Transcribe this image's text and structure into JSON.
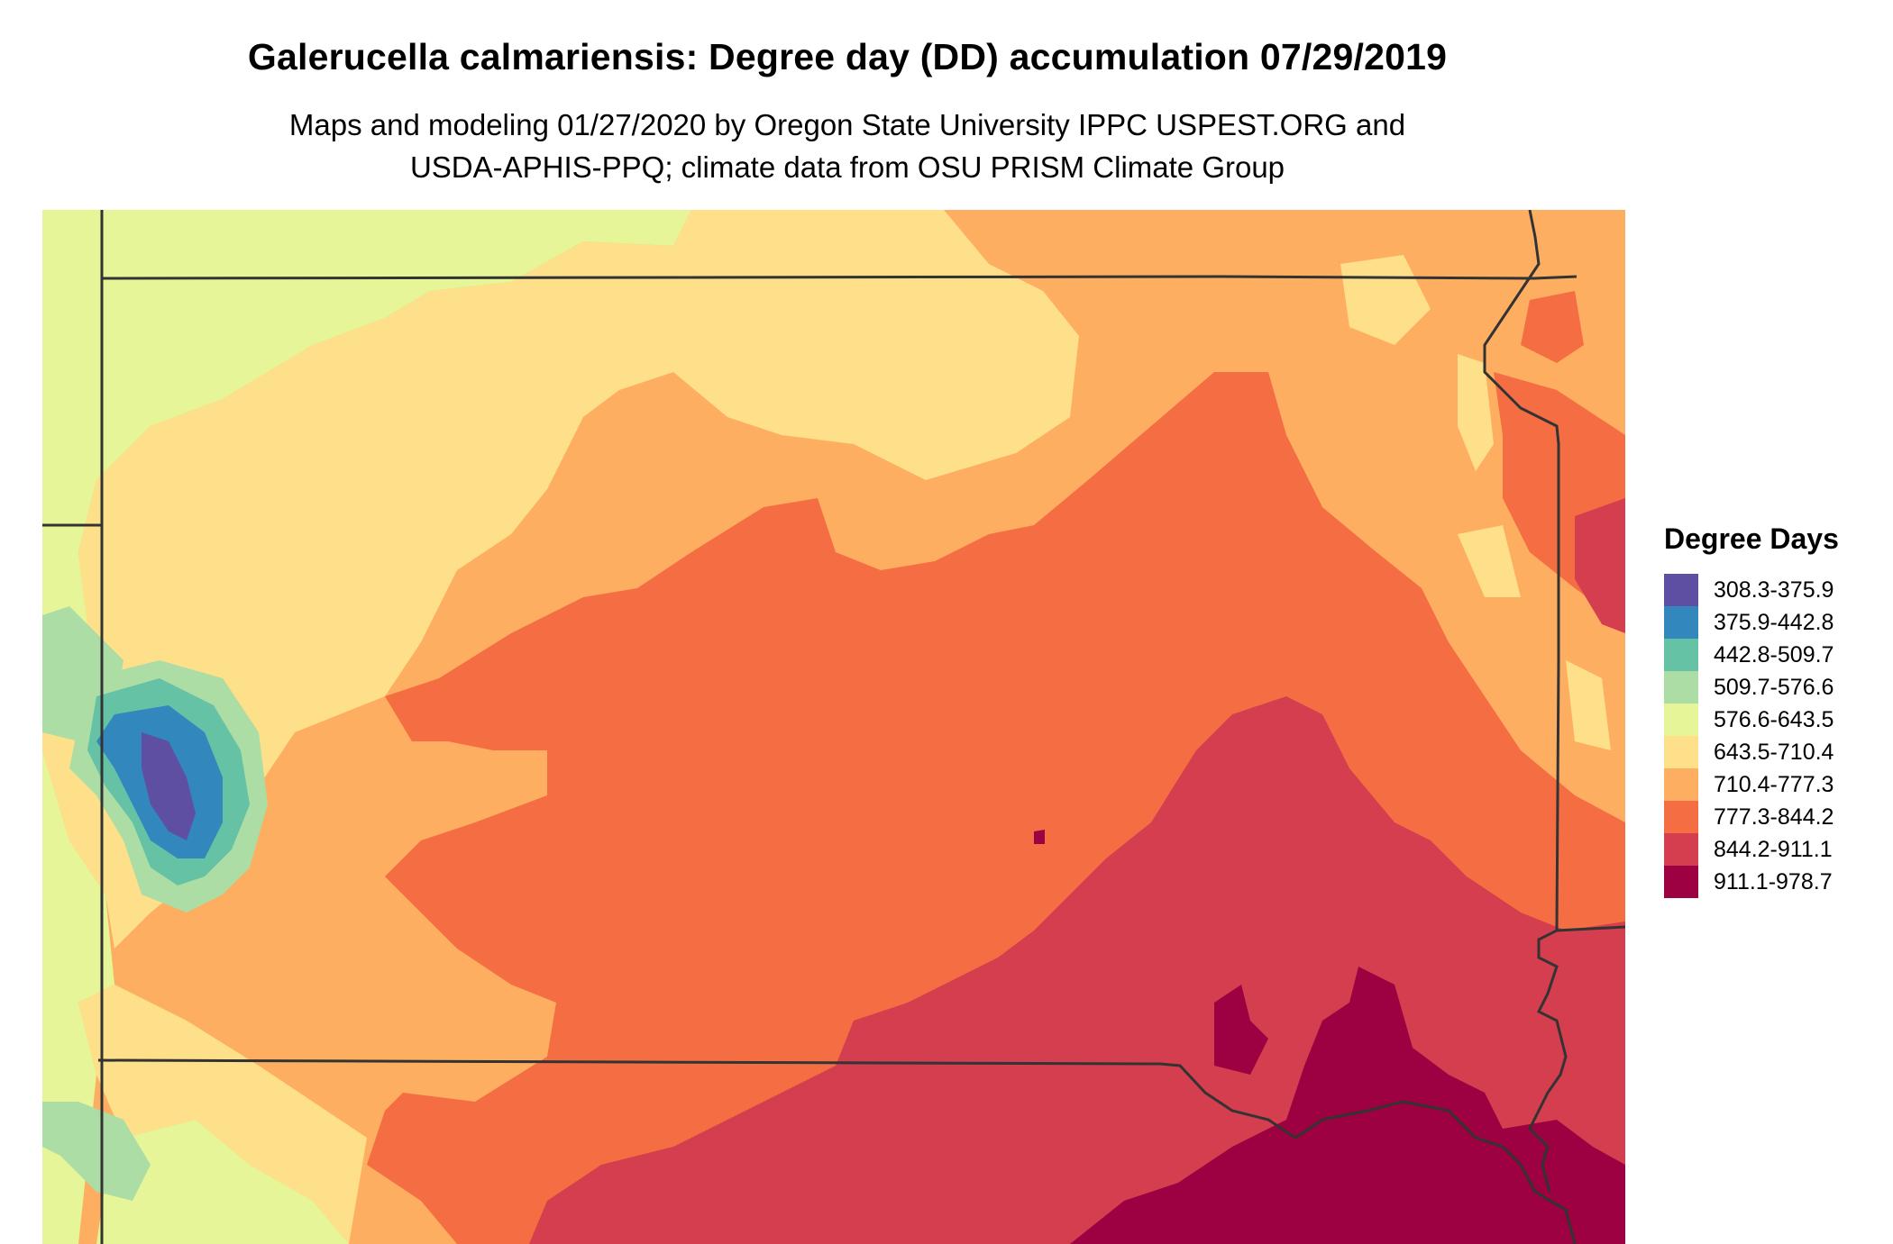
{
  "map": {
    "title": "Galerucella calmariensis: Degree day (DD) accumulation 07/29/2019",
    "subtitle_line1": "Maps and modeling 01/27/2020 by Oregon State University IPPC USPEST.ORG and",
    "subtitle_line2": "USDA-APHIS-PPQ; climate data from OSU PRISM Climate Group",
    "boundary_color": "#333333"
  },
  "legend": {
    "title": "Degree Days",
    "items": [
      {
        "label": "308.3-375.9",
        "color": "#5e4fa2"
      },
      {
        "label": "375.9-442.8",
        "color": "#3288bd"
      },
      {
        "label": "442.8-509.7",
        "color": "#66c2a5"
      },
      {
        "label": "509.7-576.6",
        "color": "#abdda4"
      },
      {
        "label": "576.6-643.5",
        "color": "#e6f598"
      },
      {
        "label": "643.5-710.4",
        "color": "#fee08b"
      },
      {
        "label": "710.4-777.3",
        "color": "#fdae61"
      },
      {
        "label": "777.3-844.2",
        "color": "#f46d43"
      },
      {
        "label": "844.2-911.1",
        "color": "#d53e4f"
      },
      {
        "label": "911.1-978.7",
        "color": "#9e0142"
      }
    ]
  }
}
